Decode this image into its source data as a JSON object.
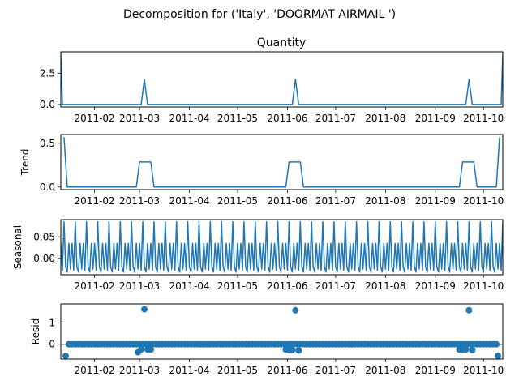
{
  "figure": {
    "suptitle": "Decomposition for ('Italy', 'DOORMAT AIRMAIL ')",
    "line_color": "#1f77b4"
  },
  "chart_data": [
    {
      "type": "line",
      "title": "Quantity",
      "ylabel": "",
      "x_range": [
        "2011-01-11",
        "2011-10-13"
      ],
      "x_tick_labels": [
        "2011-02",
        "2011-03",
        "2011-04",
        "2011-05",
        "2011-06",
        "2011-07",
        "2011-08",
        "2011-09",
        "2011-10"
      ],
      "ylim": [
        -0.2,
        4.2
      ],
      "y_ticks": [
        0.0,
        2.5
      ],
      "y_tick_labels": [
        "0.0",
        "2.5"
      ],
      "points": [
        [
          "2011-01-11",
          4.0
        ],
        [
          "2011-01-12",
          0.0
        ],
        [
          "2011-03-02",
          0.0
        ],
        [
          "2011-03-04",
          2.0
        ],
        [
          "2011-03-06",
          0.0
        ],
        [
          "2011-06-04",
          0.0
        ],
        [
          "2011-06-06",
          2.0
        ],
        [
          "2011-06-08",
          0.0
        ],
        [
          "2011-09-20",
          0.0
        ],
        [
          "2011-09-22",
          2.0
        ],
        [
          "2011-09-24",
          0.0
        ],
        [
          "2011-10-12",
          0.0
        ],
        [
          "2011-10-13",
          4.0
        ]
      ]
    },
    {
      "type": "line",
      "title": "",
      "ylabel": "Trend",
      "x_range": [
        "2011-01-11",
        "2011-10-13"
      ],
      "x_tick_labels": [
        "2011-02",
        "2011-03",
        "2011-04",
        "2011-05",
        "2011-06",
        "2011-07",
        "2011-08",
        "2011-09",
        "2011-10"
      ],
      "ylim": [
        -0.03,
        0.6
      ],
      "y_ticks": [
        0.0,
        0.5
      ],
      "y_tick_labels": [
        "0.0",
        "0.5"
      ],
      "points": [
        [
          "2011-01-13",
          0.57
        ],
        [
          "2011-01-15",
          0.0
        ],
        [
          "2011-02-27",
          0.0
        ],
        [
          "2011-03-01",
          0.286
        ],
        [
          "2011-03-08",
          0.286
        ],
        [
          "2011-03-10",
          0.0
        ],
        [
          "2011-05-31",
          0.0
        ],
        [
          "2011-06-02",
          0.286
        ],
        [
          "2011-06-09",
          0.286
        ],
        [
          "2011-06-11",
          0.0
        ],
        [
          "2011-09-16",
          0.0
        ],
        [
          "2011-09-18",
          0.286
        ],
        [
          "2011-09-25",
          0.286
        ],
        [
          "2011-09-27",
          0.0
        ],
        [
          "2011-10-09",
          0.0
        ],
        [
          "2011-10-11",
          0.57
        ]
      ]
    },
    {
      "type": "line",
      "title": "",
      "ylabel": "Seasonal",
      "x_range": [
        "2011-01-11",
        "2011-10-13"
      ],
      "x_tick_labels": [
        "2011-02",
        "2011-03",
        "2011-04",
        "2011-05",
        "2011-06",
        "2011-07",
        "2011-08",
        "2011-09",
        "2011-10"
      ],
      "ylim": [
        -0.038,
        0.09
      ],
      "y_ticks": [
        0.0,
        0.05
      ],
      "y_tick_labels": [
        "0.00",
        "0.05"
      ],
      "series_start": "2011-01-11",
      "series_end": "2011-10-13",
      "seasonal_pattern": [
        0.035,
        -0.028,
        0.085,
        -0.02,
        -0.032,
        0.035,
        -0.025
      ]
    },
    {
      "type": "scatter",
      "title": "",
      "ylabel": "Resid",
      "x_range": [
        "2011-01-11",
        "2011-10-13"
      ],
      "x_tick_labels": [
        "2011-02",
        "2011-03",
        "2011-04",
        "2011-05",
        "2011-06",
        "2011-07",
        "2011-08",
        "2011-09",
        "2011-10"
      ],
      "ylim": [
        -0.7,
        1.9
      ],
      "y_ticks": [
        0,
        1
      ],
      "y_tick_labels": [
        "0",
        "1"
      ],
      "baseline": 0,
      "series_start": "2011-01-14",
      "series_end": "2011-10-10",
      "default_value": 0.0,
      "outliers": [
        [
          "2011-01-14",
          -0.55
        ],
        [
          "2011-02-28",
          -0.38
        ],
        [
          "2011-03-02",
          -0.25
        ],
        [
          "2011-03-04",
          1.65
        ],
        [
          "2011-03-06",
          -0.25
        ],
        [
          "2011-03-08",
          -0.25
        ],
        [
          "2011-05-31",
          -0.25
        ],
        [
          "2011-06-02",
          -0.28
        ],
        [
          "2011-06-04",
          -0.28
        ],
        [
          "2011-06-06",
          1.6
        ],
        [
          "2011-06-08",
          -0.3
        ],
        [
          "2011-09-16",
          -0.25
        ],
        [
          "2011-09-18",
          -0.25
        ],
        [
          "2011-09-20",
          -0.25
        ],
        [
          "2011-09-22",
          1.6
        ],
        [
          "2011-09-24",
          -0.28
        ],
        [
          "2011-10-10",
          -0.55
        ]
      ]
    }
  ]
}
